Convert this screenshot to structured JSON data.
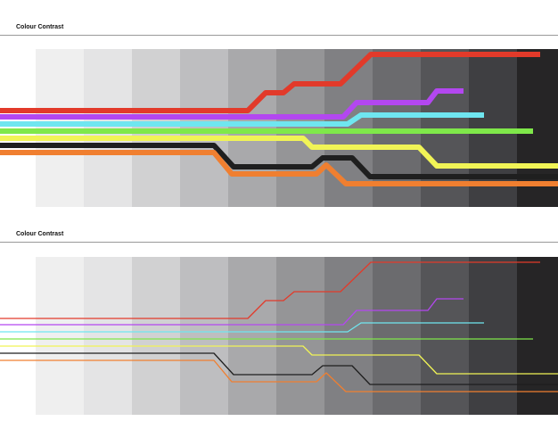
{
  "panels": [
    {
      "title": "Colour Contrast"
    },
    {
      "title": "Colour Contrast"
    }
  ]
}
